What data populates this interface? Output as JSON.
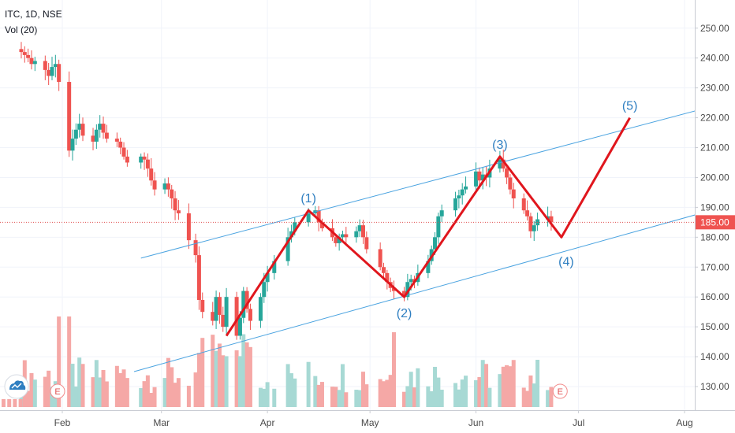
{
  "header": {
    "symbol_line": "ITC, 1D, NSE",
    "indicator_line": "Vol (20)"
  },
  "price_badge": "185.00",
  "earnings_marker": "E",
  "colors": {
    "up": "#26a69a",
    "down": "#ef5350",
    "vol_up": "#a7d9d4",
    "vol_down": "#f5a8a6",
    "channel": "#4aa3e0",
    "wave": "#e0161d",
    "wave_label": "#2f7fc1",
    "price_line": "#e05050"
  },
  "chart_data": {
    "type": "candlestick",
    "y_axis": {
      "min": 121,
      "max": 256,
      "ticks": [
        "130.00",
        "140.00",
        "150.00",
        "160.00",
        "170.00",
        "180.00",
        "190.00",
        "200.00",
        "210.00",
        "220.00",
        "230.00",
        "240.00",
        "250.00"
      ]
    },
    "x_axis": {
      "ticks": [
        {
          "label": "Feb",
          "date": "2020-02-01"
        },
        {
          "label": "Mar",
          "date": "2020-03-01"
        },
        {
          "label": "Apr",
          "date": "2020-04-01"
        },
        {
          "label": "May",
          "date": "2020-05-01"
        },
        {
          "label": "Jun",
          "date": "2020-06-01"
        },
        {
          "label": "Jul",
          "date": "2020-07-01"
        },
        {
          "label": "Aug",
          "date": "2020-08-01"
        }
      ]
    },
    "last_price": 185.0,
    "closes": [
      {
        "date": "2020-01-20",
        "close": 242
      },
      {
        "date": "2020-01-21",
        "close": 241
      },
      {
        "date": "2020-01-22",
        "close": 240
      },
      {
        "date": "2020-01-23",
        "close": 238
      },
      {
        "date": "2020-01-24",
        "close": 239
      },
      {
        "date": "2020-01-27",
        "close": 236
      },
      {
        "date": "2020-01-28",
        "close": 234
      },
      {
        "date": "2020-01-29",
        "close": 237
      },
      {
        "date": "2020-01-30",
        "close": 238
      },
      {
        "date": "2020-01-31",
        "close": 232
      },
      {
        "date": "2020-02-03",
        "close": 209
      },
      {
        "date": "2020-02-04",
        "close": 213
      },
      {
        "date": "2020-02-05",
        "close": 216
      },
      {
        "date": "2020-02-06",
        "close": 218
      },
      {
        "date": "2020-02-07",
        "close": 214
      },
      {
        "date": "2020-02-10",
        "close": 212
      },
      {
        "date": "2020-02-11",
        "close": 216
      },
      {
        "date": "2020-02-12",
        "close": 218
      },
      {
        "date": "2020-02-13",
        "close": 215
      },
      {
        "date": "2020-02-14",
        "close": 213
      },
      {
        "date": "2020-02-17",
        "close": 212
      },
      {
        "date": "2020-02-18",
        "close": 210
      },
      {
        "date": "2020-02-19",
        "close": 207
      },
      {
        "date": "2020-02-20",
        "close": 205
      },
      {
        "date": "2020-02-24",
        "close": 207
      },
      {
        "date": "2020-02-25",
        "close": 206
      },
      {
        "date": "2020-02-26",
        "close": 203
      },
      {
        "date": "2020-02-27",
        "close": 199
      },
      {
        "date": "2020-02-28",
        "close": 196
      },
      {
        "date": "2020-03-02",
        "close": 198
      },
      {
        "date": "2020-03-03",
        "close": 196
      },
      {
        "date": "2020-03-04",
        "close": 193
      },
      {
        "date": "2020-03-05",
        "close": 189
      },
      {
        "date": "2020-03-06",
        "close": 188
      },
      {
        "date": "2020-03-09",
        "close": 179
      },
      {
        "date": "2020-03-11",
        "close": 174
      },
      {
        "date": "2020-03-12",
        "close": 159
      },
      {
        "date": "2020-03-13",
        "close": 155
      },
      {
        "date": "2020-03-16",
        "close": 152
      },
      {
        "date": "2020-03-17",
        "close": 160
      },
      {
        "date": "2020-03-18",
        "close": 154
      },
      {
        "date": "2020-03-19",
        "close": 150
      },
      {
        "date": "2020-03-20",
        "close": 160
      },
      {
        "date": "2020-03-23",
        "close": 147
      },
      {
        "date": "2020-03-24",
        "close": 153
      },
      {
        "date": "2020-03-25",
        "close": 162
      },
      {
        "date": "2020-03-26",
        "close": 156
      },
      {
        "date": "2020-03-27",
        "close": 152
      },
      {
        "date": "2020-03-30",
        "close": 160
      },
      {
        "date": "2020-03-31",
        "close": 165
      },
      {
        "date": "2020-04-01",
        "close": 168
      },
      {
        "date": "2020-04-03",
        "close": 172
      },
      {
        "date": "2020-04-07",
        "close": 180
      },
      {
        "date": "2020-04-08",
        "close": 182
      },
      {
        "date": "2020-04-09",
        "close": 185
      },
      {
        "date": "2020-04-13",
        "close": 188
      },
      {
        "date": "2020-04-15",
        "close": 189
      },
      {
        "date": "2020-04-16",
        "close": 185
      },
      {
        "date": "2020-04-17",
        "close": 183
      },
      {
        "date": "2020-04-20",
        "close": 180
      },
      {
        "date": "2020-04-21",
        "close": 178
      },
      {
        "date": "2020-04-22",
        "close": 180
      },
      {
        "date": "2020-04-23",
        "close": 181
      },
      {
        "date": "2020-04-24",
        "close": 180
      },
      {
        "date": "2020-04-27",
        "close": 182
      },
      {
        "date": "2020-04-28",
        "close": 184
      },
      {
        "date": "2020-04-29",
        "close": 180
      },
      {
        "date": "2020-04-30",
        "close": 176
      },
      {
        "date": "2020-05-04",
        "close": 170
      },
      {
        "date": "2020-05-05",
        "close": 168
      },
      {
        "date": "2020-05-06",
        "close": 165
      },
      {
        "date": "2020-05-07",
        "close": 163
      },
      {
        "date": "2020-05-08",
        "close": 162
      },
      {
        "date": "2020-05-11",
        "close": 160
      },
      {
        "date": "2020-05-12",
        "close": 165
      },
      {
        "date": "2020-05-13",
        "close": 166
      },
      {
        "date": "2020-05-14",
        "close": 165
      },
      {
        "date": "2020-05-15",
        "close": 168
      },
      {
        "date": "2020-05-18",
        "close": 172
      },
      {
        "date": "2020-05-19",
        "close": 176
      },
      {
        "date": "2020-05-20",
        "close": 180
      },
      {
        "date": "2020-05-21",
        "close": 187
      },
      {
        "date": "2020-05-22",
        "close": 189
      },
      {
        "date": "2020-05-26",
        "close": 193
      },
      {
        "date": "2020-05-27",
        "close": 194
      },
      {
        "date": "2020-05-28",
        "close": 196
      },
      {
        "date": "2020-05-29",
        "close": 197
      },
      {
        "date": "2020-06-01",
        "close": 202
      },
      {
        "date": "2020-06-02",
        "close": 199
      },
      {
        "date": "2020-06-03",
        "close": 201
      },
      {
        "date": "2020-06-04",
        "close": 200
      },
      {
        "date": "2020-06-05",
        "close": 203
      },
      {
        "date": "2020-06-08",
        "close": 206
      },
      {
        "date": "2020-06-09",
        "close": 203
      },
      {
        "date": "2020-06-10",
        "close": 200
      },
      {
        "date": "2020-06-11",
        "close": 196
      },
      {
        "date": "2020-06-12",
        "close": 193
      },
      {
        "date": "2020-06-15",
        "close": 189
      },
      {
        "date": "2020-06-16",
        "close": 187
      },
      {
        "date": "2020-06-17",
        "close": 182
      },
      {
        "date": "2020-06-18",
        "close": 184
      },
      {
        "date": "2020-06-19",
        "close": 186
      },
      {
        "date": "2020-06-22",
        "close": 187
      },
      {
        "date": "2020-06-23",
        "close": 185
      }
    ],
    "elliott_wave": [
      {
        "date": "2020-03-20",
        "price": 147,
        "label": ""
      },
      {
        "date": "2020-04-13",
        "price": 189,
        "label": "(1)"
      },
      {
        "date": "2020-05-11",
        "price": 160,
        "label": "(2)"
      },
      {
        "date": "2020-06-08",
        "price": 207,
        "label": "(3)"
      },
      {
        "date": "2020-06-26",
        "price": 180,
        "label": "(4)"
      },
      {
        "date": "2020-07-16",
        "price": 220,
        "label": "(5)"
      }
    ],
    "channel_lines": [
      {
        "start": {
          "date": "2020-02-24",
          "price": 173
        },
        "end": {
          "date": "2020-08-13",
          "price": 225
        }
      },
      {
        "start": {
          "date": "2020-02-22",
          "price": 135
        },
        "end": {
          "date": "2020-08-12",
          "price": 190
        }
      }
    ]
  }
}
